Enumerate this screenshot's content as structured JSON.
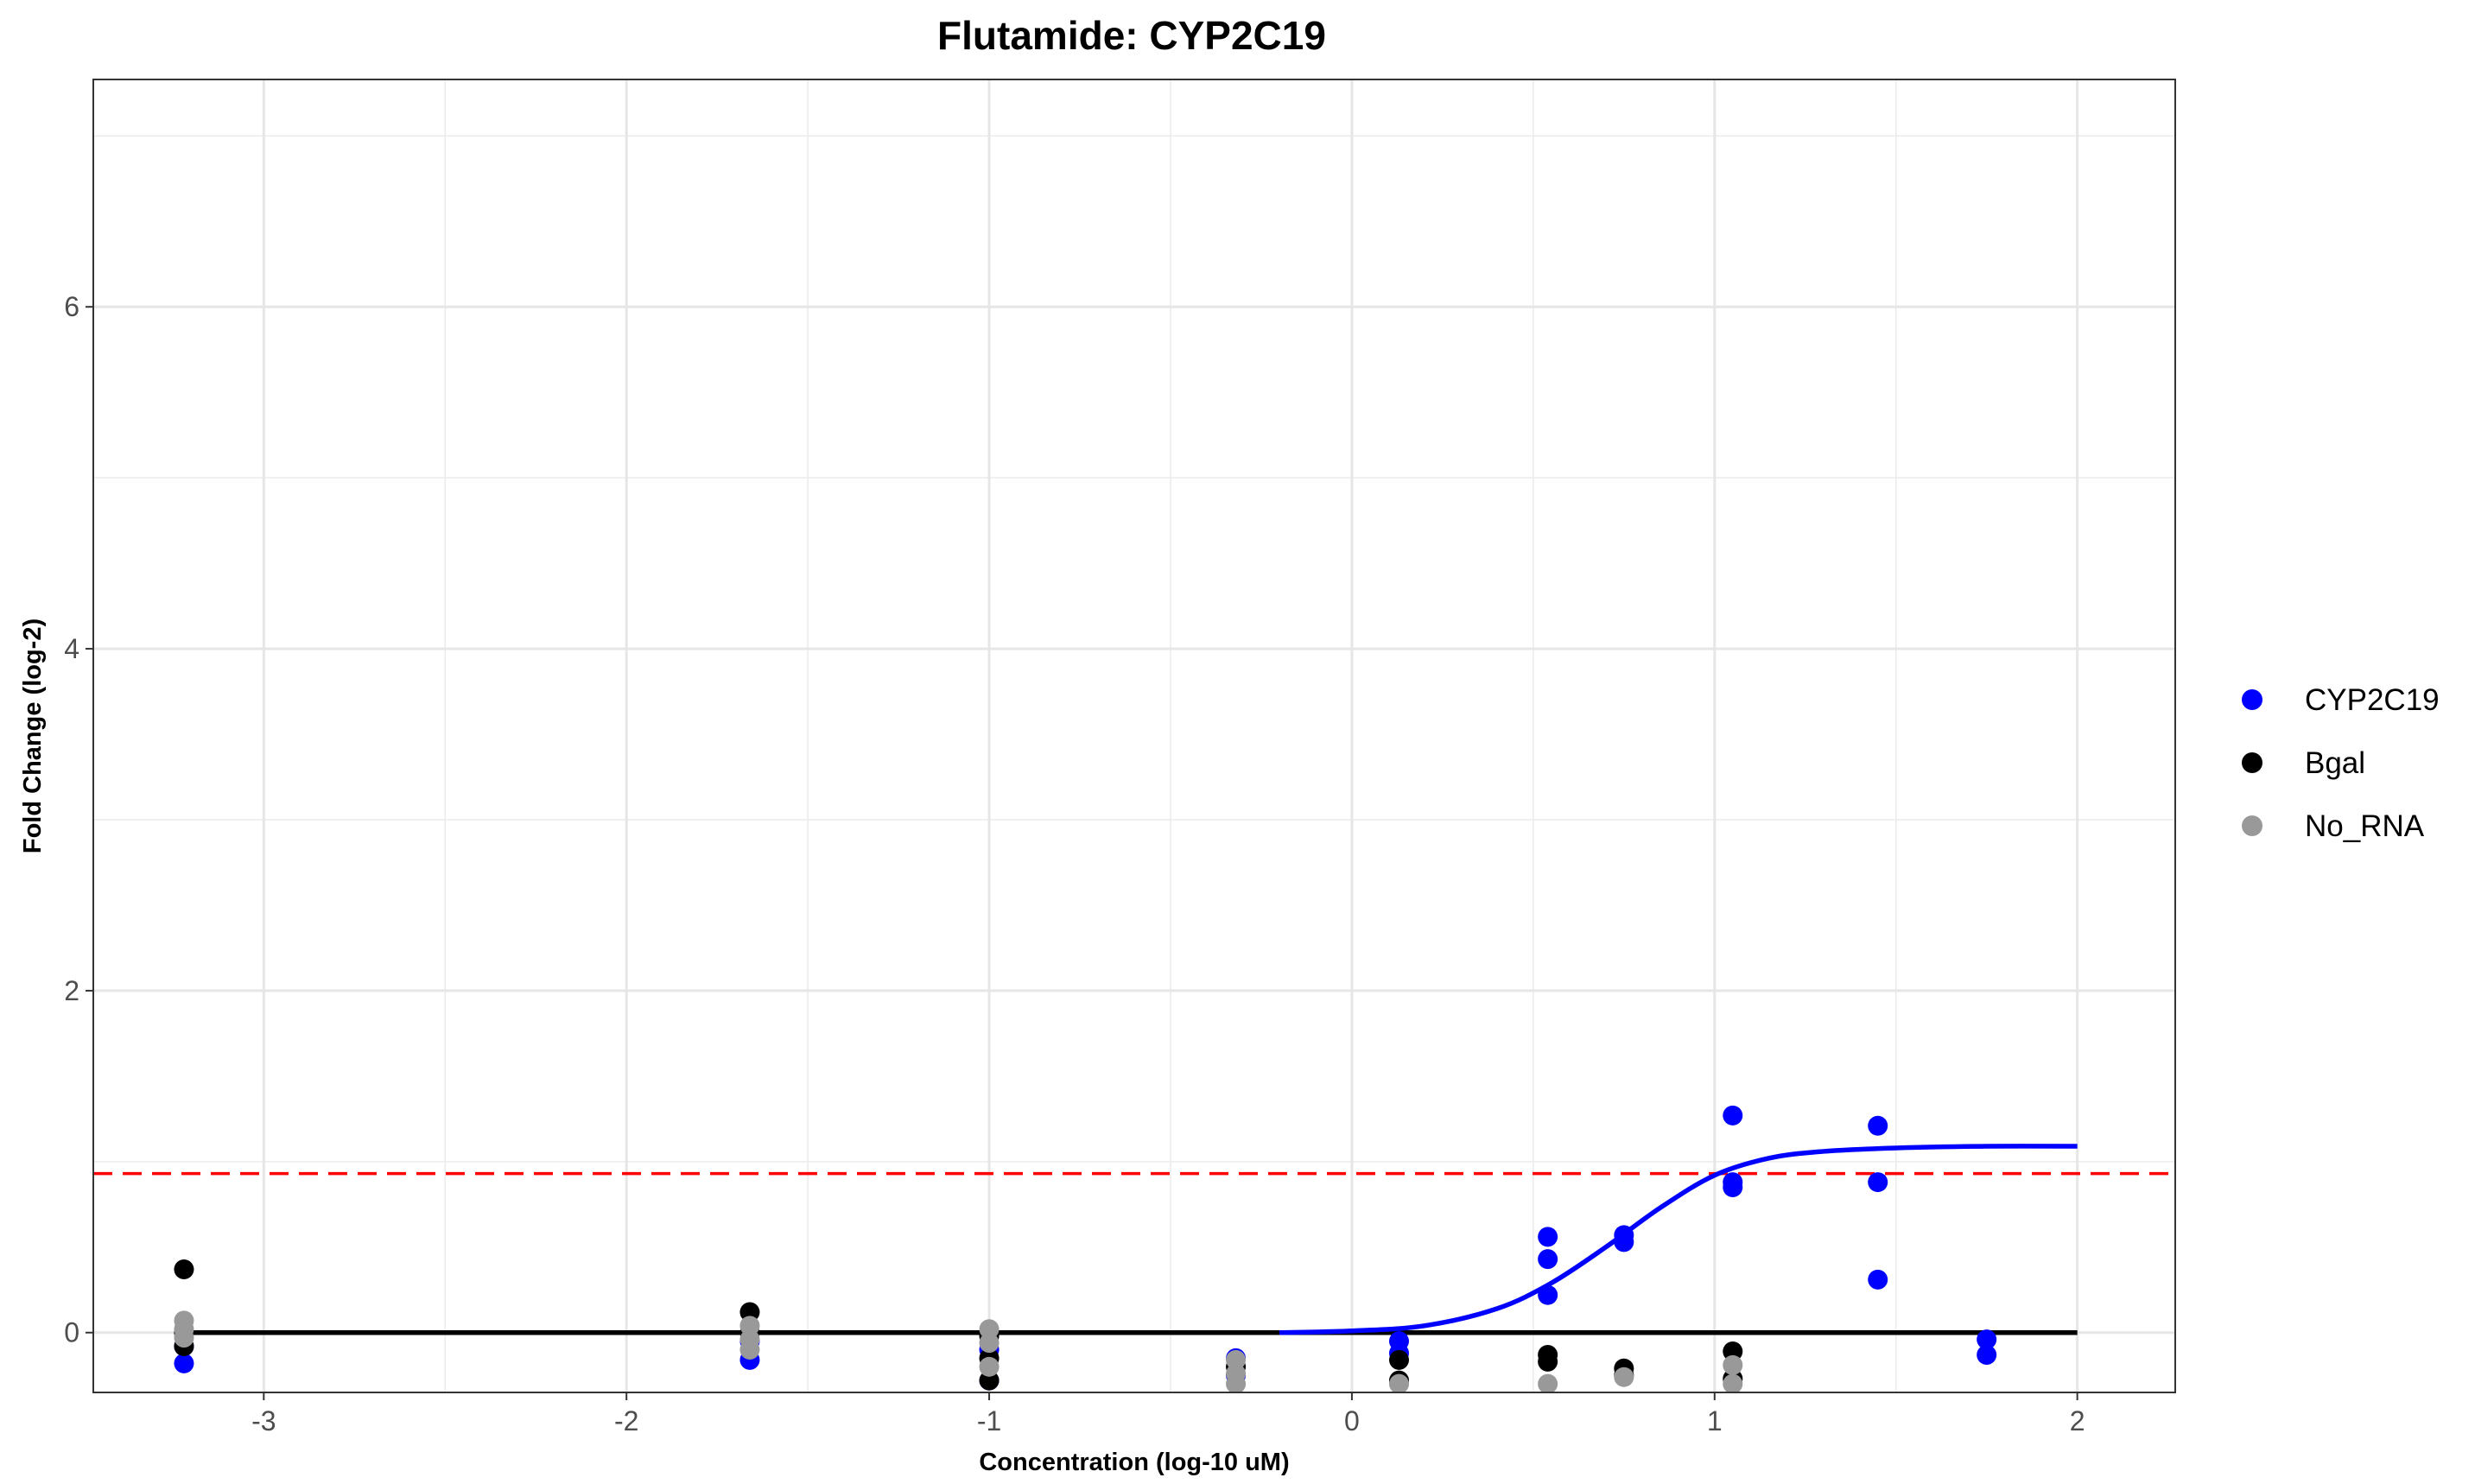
{
  "chart_data": {
    "type": "scatter",
    "title": "Flutamide: CYP2C19",
    "xlabel": "Concentration (log-10 uM)",
    "ylabel": "Fold Change (log-2)",
    "xlim": [
      -3.47,
      2.27
    ],
    "ylim": [
      -0.35,
      7.33
    ],
    "x_ticks": [
      {
        "value": -3,
        "label": "-3"
      },
      {
        "value": -2,
        "label": "-2"
      },
      {
        "value": -1,
        "label": "-1"
      },
      {
        "value": 0,
        "label": "0"
      },
      {
        "value": 1,
        "label": "1"
      },
      {
        "value": 2,
        "label": "2"
      }
    ],
    "y_ticks": [
      {
        "value": 0,
        "label": "0"
      },
      {
        "value": 2,
        "label": "2"
      },
      {
        "value": 4,
        "label": "4"
      },
      {
        "value": 6,
        "label": "6"
      }
    ],
    "grid": true,
    "legend_position": "right",
    "threshold_line": {
      "y": 0.93,
      "color": "#ff0000",
      "style": "dashed"
    },
    "baseline": {
      "y": 0,
      "x_range": [
        -3.22,
        2.0
      ],
      "color": "#000000"
    },
    "fit_curve": {
      "color": "#0000ff",
      "points": [
        [
          -0.2,
          0.0
        ],
        [
          0.0,
          0.01
        ],
        [
          0.2,
          0.04
        ],
        [
          0.4,
          0.14
        ],
        [
          0.55,
          0.29
        ],
        [
          0.7,
          0.5
        ],
        [
          0.85,
          0.73
        ],
        [
          1.0,
          0.92
        ],
        [
          1.15,
          1.02
        ],
        [
          1.3,
          1.06
        ],
        [
          1.5,
          1.08
        ],
        [
          1.75,
          1.09
        ],
        [
          2.0,
          1.09
        ]
      ]
    },
    "series": [
      {
        "name": "CYP2C19",
        "color": "#0000ff",
        "points": [
          [
            -3.22,
            -0.18
          ],
          [
            -3.22,
            -0.08
          ],
          [
            -1.66,
            -0.16
          ],
          [
            -1.66,
            -0.05
          ],
          [
            -1.0,
            -0.28
          ],
          [
            -1.0,
            -0.1
          ],
          [
            -0.32,
            -0.15
          ],
          [
            -0.32,
            -0.25
          ],
          [
            0.13,
            -0.05
          ],
          [
            0.13,
            -0.12
          ],
          [
            0.54,
            0.56
          ],
          [
            0.54,
            0.43
          ],
          [
            0.54,
            0.22
          ],
          [
            0.75,
            0.57
          ],
          [
            0.75,
            0.53
          ],
          [
            1.05,
            1.27
          ],
          [
            1.05,
            0.88
          ],
          [
            1.05,
            0.85
          ],
          [
            1.45,
            1.21
          ],
          [
            1.45,
            0.88
          ],
          [
            1.45,
            0.31
          ],
          [
            1.75,
            -0.04
          ],
          [
            1.75,
            -0.13
          ]
        ]
      },
      {
        "name": "Bgal",
        "color": "#000000",
        "points": [
          [
            -3.22,
            0.37
          ],
          [
            -3.22,
            -0.08
          ],
          [
            -3.22,
            0.0
          ],
          [
            -1.66,
            0.12
          ],
          [
            -1.66,
            0.0
          ],
          [
            -1.0,
            -0.02
          ],
          [
            -1.0,
            -0.15
          ],
          [
            -1.0,
            -0.28
          ],
          [
            -0.32,
            -0.2
          ],
          [
            0.13,
            -0.16
          ],
          [
            0.13,
            -0.28
          ],
          [
            0.54,
            -0.13
          ],
          [
            0.54,
            -0.17
          ],
          [
            0.75,
            -0.21
          ],
          [
            0.75,
            -0.25
          ],
          [
            1.05,
            -0.11
          ],
          [
            1.05,
            -0.27
          ]
        ]
      },
      {
        "name": "No_RNA",
        "color": "#999999",
        "points": [
          [
            -3.22,
            0.07
          ],
          [
            -3.22,
            0.02
          ],
          [
            -3.22,
            -0.03
          ],
          [
            -1.66,
            0.04
          ],
          [
            -1.66,
            -0.04
          ],
          [
            -1.66,
            -0.1
          ],
          [
            -1.0,
            0.02
          ],
          [
            -1.0,
            -0.06
          ],
          [
            -1.0,
            -0.2
          ],
          [
            -0.32,
            -0.16
          ],
          [
            -0.32,
            -0.24
          ],
          [
            -0.32,
            -0.3
          ],
          [
            0.13,
            -0.3
          ],
          [
            0.54,
            -0.3
          ],
          [
            0.75,
            -0.26
          ],
          [
            1.05,
            -0.19
          ],
          [
            1.05,
            -0.3
          ]
        ]
      }
    ]
  }
}
